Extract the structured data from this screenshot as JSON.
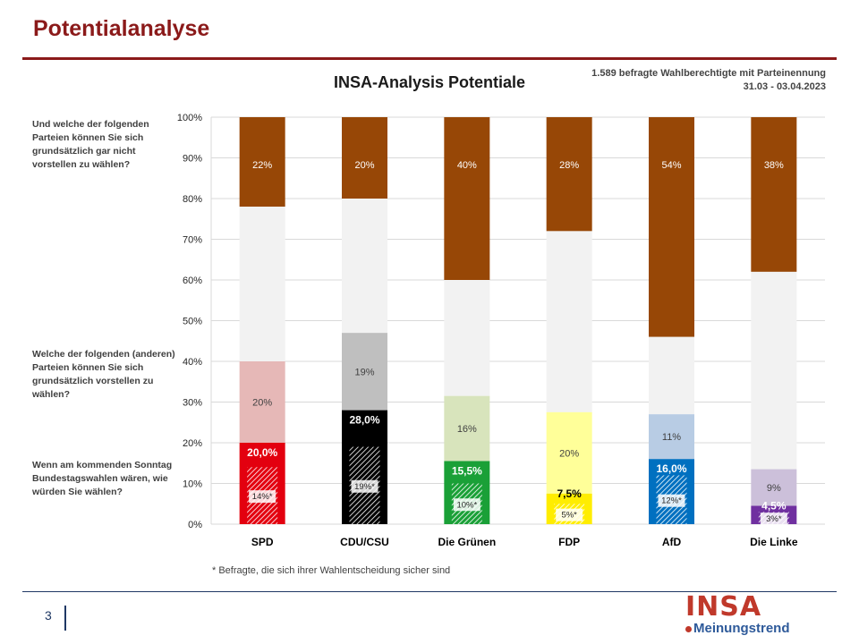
{
  "page": {
    "title": "Potentialanalyse",
    "chart_title": "INSA-Analysis Potentiale",
    "source_line1": "1.589 befragte Wahlberechtigte mit Parteinennung",
    "source_line2": "31.03 - 03.04.2023",
    "footnote": "* Befragte, die sich ihrer Wahlentscheidung sicher sind",
    "page_number": "3",
    "logo_main": "INSA",
    "logo_sub": "Meinungstrend"
  },
  "questions": [
    "Und welche der folgenden Parteien können Sie sich grundsätzlich gar nicht vorstellen zu wählen?",
    "Welche der folgenden (anderen) Parteien können Sie sich grundsätzlich vorstellen zu wählen?",
    "Wenn am kommenden Sonntag Bundestagswahlen wären, wie würden Sie wählen?"
  ],
  "colors": {
    "rejection": "#974706",
    "rest": "#f2f2f2",
    "grid": "#d9d9d9"
  },
  "chart_data": {
    "type": "bar",
    "stacked": true,
    "ylim": [
      0,
      100
    ],
    "yticks": [
      "0%",
      "10%",
      "20%",
      "30%",
      "40%",
      "50%",
      "60%",
      "70%",
      "80%",
      "90%",
      "100%"
    ],
    "grid": true,
    "categories": [
      "SPD",
      "CDU/CSU",
      "Die Grünen",
      "FDP",
      "AfD",
      "Die Linke"
    ],
    "vote_intention": [
      20.0,
      28.0,
      15.5,
      7.5,
      16.0,
      4.5
    ],
    "vote_labels": [
      "20,0%",
      "28,0%",
      "15,5%",
      "7,5%",
      "16,0%",
      "4,5%"
    ],
    "certain_voters": [
      14,
      19,
      10,
      5,
      12,
      3
    ],
    "certain_labels": [
      "14%*",
      "19%*",
      "10%*",
      "5%*",
      "12%*",
      "3%*"
    ],
    "potential": [
      20,
      19,
      16,
      20,
      11,
      9
    ],
    "potential_labels": [
      "20%",
      "19%",
      "16%",
      "20%",
      "11%",
      "9%"
    ],
    "rejection": [
      22,
      20,
      40,
      28,
      54,
      38
    ],
    "rejection_labels": [
      "22%",
      "20%",
      "40%",
      "28%",
      "54%",
      "38%"
    ],
    "party_colors": [
      "#e3000f",
      "#000000",
      "#1aa037",
      "#ffed00",
      "#0070c0",
      "#7030a0"
    ],
    "potential_colors": [
      "#e6b8b7",
      "#bfbfbf",
      "#d8e4bc",
      "#ffff99",
      "#b8cce4",
      "#ccc0da"
    ],
    "vote_label_colors": [
      "#ffffff",
      "#ffffff",
      "#ffffff",
      "#000000",
      "#ffffff",
      "#ffffff"
    ]
  }
}
